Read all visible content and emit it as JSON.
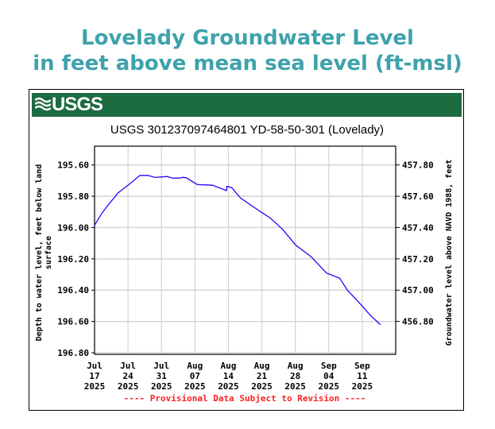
{
  "header": {
    "title_line1": "Lovelady Groundwater Level",
    "title_line2": "in feet above mean sea level (ft-msl)"
  },
  "banner": {
    "logo_text": "USGS",
    "color": "#1d6b41"
  },
  "chart_data": {
    "type": "line",
    "title": "USGS 301237097464801 YD-58-50-301 (Lovelady)",
    "ylabel": "Depth to water level, feet below land surface",
    "ylabel_lines": [
      "Depth to water level, feet below land",
      "surface"
    ],
    "y2label": "Groundwater level above NAVD 1988, feet",
    "footer": "---- Provisional Data Subject to Revision ----",
    "x_unit": "days since Jul 17 2025",
    "xlim": [
      0,
      63
    ],
    "ylim": [
      195.48,
      196.81
    ],
    "y_inverted": true,
    "y_ticks": [
      "195.60",
      "195.80",
      "196.00",
      "196.20",
      "196.40",
      "196.60",
      "196.80"
    ],
    "y2_ticks": [
      "457.80",
      "457.60",
      "457.40",
      "457.20",
      "457.00",
      "456.80"
    ],
    "y2_offset": 653.4,
    "x_ticks": [
      {
        "day": 0,
        "lines": [
          "Jul",
          "17",
          "2025"
        ]
      },
      {
        "day": 7,
        "lines": [
          "Jul",
          "24",
          "2025"
        ]
      },
      {
        "day": 14,
        "lines": [
          "Jul",
          "31",
          "2025"
        ]
      },
      {
        "day": 21,
        "lines": [
          "Aug",
          "07",
          "2025"
        ]
      },
      {
        "day": 28,
        "lines": [
          "Aug",
          "14",
          "2025"
        ]
      },
      {
        "day": 35,
        "lines": [
          "Aug",
          "21",
          "2025"
        ]
      },
      {
        "day": 42,
        "lines": [
          "Aug",
          "28",
          "2025"
        ]
      },
      {
        "day": 49,
        "lines": [
          "Sep",
          "04",
          "2025"
        ]
      },
      {
        "day": 56,
        "lines": [
          "Sep",
          "11",
          "2025"
        ]
      }
    ],
    "grid": true,
    "series": [
      {
        "name": "Depth to water level",
        "color": "#2a00ff",
        "x": [
          0,
          1.5,
          3,
          5,
          7.4,
          9.5,
          11.2,
          12.6,
          15.2,
          16.3,
          17.9,
          18.4,
          19.2,
          21.5,
          24.7,
          27.6,
          27.7,
          28.7,
          30.5,
          34.5,
          36.8,
          39.3,
          42.1,
          45.3,
          48.5,
          51.3,
          52.9,
          55.5,
          57.7,
          59.8
        ],
        "y": [
          195.986,
          195.91,
          195.85,
          195.776,
          195.72,
          195.667,
          195.667,
          195.68,
          195.674,
          195.684,
          195.684,
          195.679,
          195.682,
          195.725,
          195.73,
          195.764,
          195.737,
          195.745,
          195.81,
          195.894,
          195.94,
          196.01,
          196.113,
          196.186,
          196.29,
          196.324,
          196.4,
          196.485,
          196.56,
          196.62
        ]
      }
    ]
  }
}
